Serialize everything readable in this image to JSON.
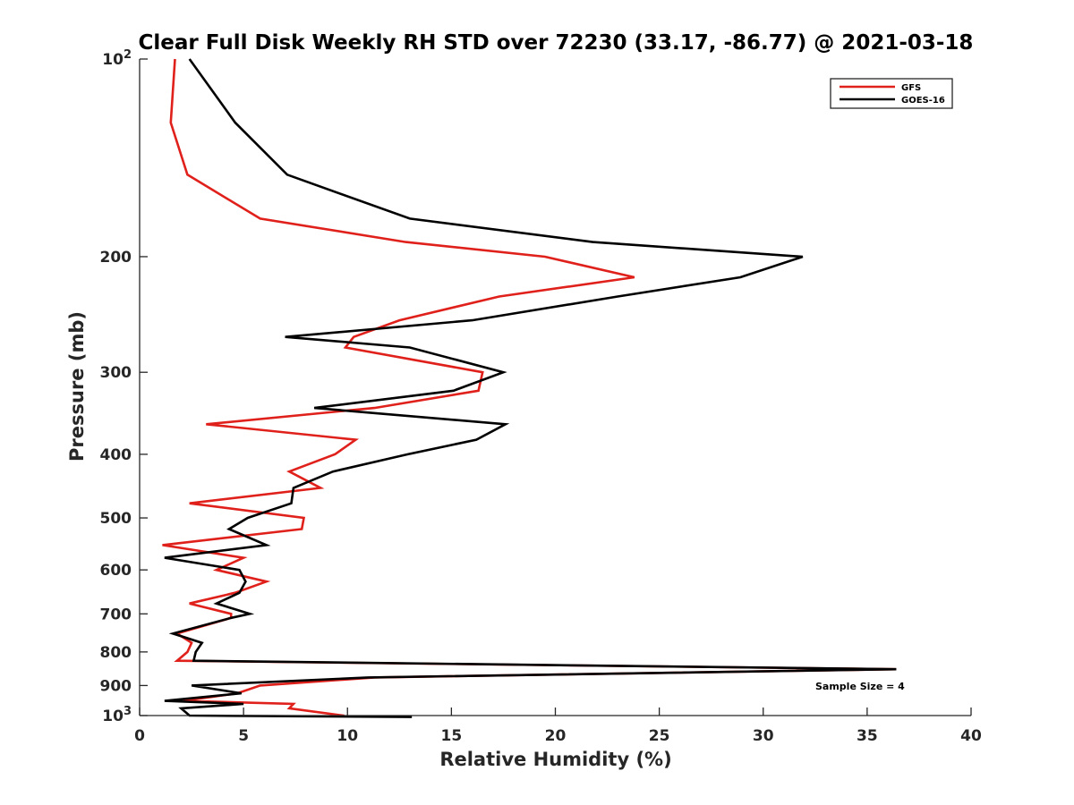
{
  "chart_data": {
    "type": "line",
    "title": "Clear Full Disk Weekly RH STD over 72230 (33.17, -86.77) @ 2021-03-18",
    "xlabel": "Relative Humidity (%)",
    "ylabel": "Pressure (mb)",
    "xlim": [
      0,
      40
    ],
    "ylim": [
      100,
      1000
    ],
    "yscale": "log",
    "y_reversed": true,
    "grid": false,
    "legend_position": "top-right",
    "x_ticks": [
      "0",
      "5",
      "10",
      "15",
      "20",
      "25",
      "30",
      "35",
      "40"
    ],
    "x_tick_values": [
      0,
      5,
      10,
      15,
      20,
      25,
      30,
      35,
      40
    ],
    "y_ticks": [
      {
        "value": 100,
        "base": "10",
        "exp": "2"
      },
      {
        "value": 200,
        "label": "200"
      },
      {
        "value": 300,
        "label": "300"
      },
      {
        "value": 400,
        "label": "400"
      },
      {
        "value": 500,
        "label": "500"
      },
      {
        "value": 600,
        "label": "600"
      },
      {
        "value": 700,
        "label": "700"
      },
      {
        "value": 800,
        "label": "800"
      },
      {
        "value": 900,
        "label": "900"
      },
      {
        "value": 1000,
        "base": "10",
        "exp": "3"
      }
    ],
    "annotation": "Sample Size = 4",
    "series": [
      {
        "name": "GFS",
        "color": "#e0201b",
        "points": [
          [
            1.7,
            100
          ],
          [
            1.5,
            125
          ],
          [
            2.3,
            150
          ],
          [
            5.8,
            175
          ],
          [
            12.8,
            190
          ],
          [
            19.5,
            200
          ],
          [
            23.8,
            215
          ],
          [
            17.3,
            230
          ],
          [
            12.5,
            250
          ],
          [
            10.3,
            265
          ],
          [
            9.9,
            275
          ],
          [
            16.5,
            300
          ],
          [
            16.3,
            320
          ],
          [
            11.3,
            340
          ],
          [
            3.2,
            360
          ],
          [
            10.4,
            380
          ],
          [
            9.4,
            400
          ],
          [
            7.2,
            425
          ],
          [
            8.7,
            450
          ],
          [
            2.4,
            475
          ],
          [
            7.9,
            500
          ],
          [
            7.8,
            520
          ],
          [
            1.1,
            550
          ],
          [
            5.0,
            575
          ],
          [
            3.7,
            600
          ],
          [
            6.1,
            625
          ],
          [
            4.6,
            650
          ],
          [
            2.4,
            675
          ],
          [
            4.4,
            700
          ],
          [
            4.4,
            710
          ],
          [
            1.8,
            750
          ],
          [
            2.5,
            775
          ],
          [
            2.3,
            800
          ],
          [
            1.8,
            825
          ],
          [
            36.4,
            850
          ],
          [
            11.3,
            875
          ],
          [
            5.8,
            900
          ],
          [
            4.7,
            925
          ],
          [
            2.1,
            950
          ],
          [
            7.4,
            960
          ],
          [
            7.2,
            975
          ],
          [
            9.8,
            1000
          ],
          [
            9.8,
            1005
          ]
        ]
      },
      {
        "name": "GOES-16",
        "color": "#000000",
        "points": [
          [
            2.4,
            100
          ],
          [
            4.6,
            125
          ],
          [
            7.1,
            150
          ],
          [
            13.0,
            175
          ],
          [
            21.8,
            190
          ],
          [
            31.9,
            200
          ],
          [
            28.9,
            215
          ],
          [
            23.0,
            230
          ],
          [
            16.0,
            250
          ],
          [
            7.0,
            265
          ],
          [
            13.0,
            275
          ],
          [
            17.5,
            300
          ],
          [
            15.1,
            320
          ],
          [
            8.4,
            340
          ],
          [
            17.6,
            360
          ],
          [
            16.2,
            380
          ],
          [
            12.9,
            400
          ],
          [
            9.3,
            425
          ],
          [
            7.4,
            450
          ],
          [
            7.3,
            475
          ],
          [
            5.2,
            500
          ],
          [
            4.3,
            520
          ],
          [
            6.1,
            550
          ],
          [
            1.2,
            575
          ],
          [
            4.8,
            600
          ],
          [
            5.1,
            625
          ],
          [
            4.8,
            650
          ],
          [
            3.7,
            675
          ],
          [
            5.3,
            700
          ],
          [
            4.4,
            710
          ],
          [
            1.6,
            750
          ],
          [
            3.0,
            775
          ],
          [
            2.7,
            800
          ],
          [
            2.6,
            825
          ],
          [
            36.4,
            850
          ],
          [
            11.0,
            875
          ],
          [
            2.5,
            900
          ],
          [
            4.9,
            925
          ],
          [
            1.2,
            950
          ],
          [
            5.0,
            960
          ],
          [
            2.0,
            975
          ],
          [
            2.4,
            1000
          ],
          [
            13.1,
            1005
          ]
        ]
      }
    ]
  }
}
